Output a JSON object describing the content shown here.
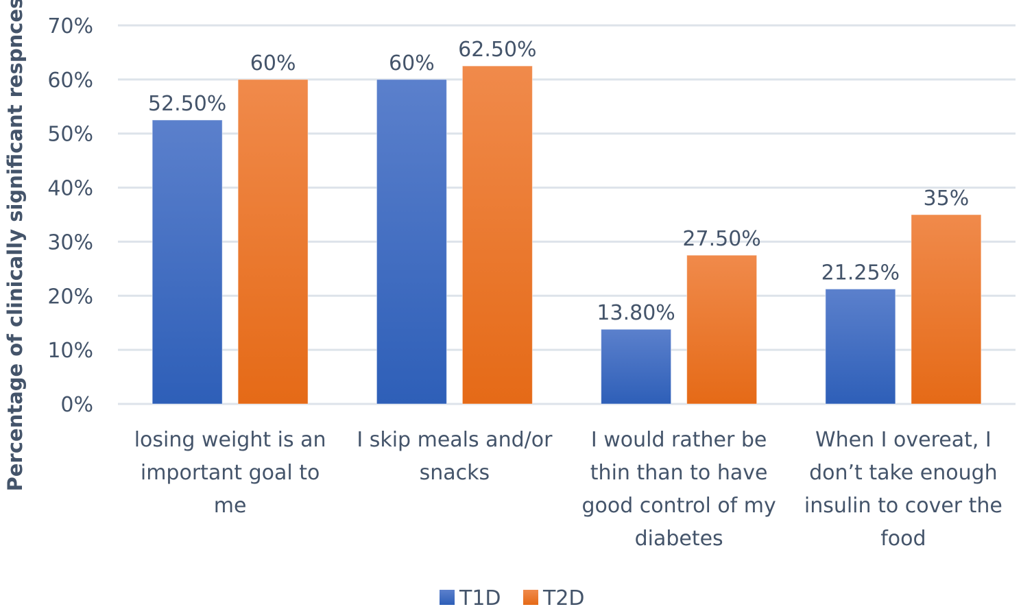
{
  "chart_data": {
    "type": "bar",
    "title": "",
    "xlabel": "",
    "ylabel": "Percentage of clinically significant respnces",
    "ylim": [
      0,
      70
    ],
    "yticks": [
      0,
      10,
      20,
      30,
      40,
      50,
      60,
      70
    ],
    "ytick_labels": [
      "0%",
      "10%",
      "20%",
      "30%",
      "40%",
      "50%",
      "60%",
      "70%"
    ],
    "grid": true,
    "legend_position": "bottom-center",
    "categories": [
      [
        "losing weight is an",
        "important goal to",
        "me"
      ],
      [
        "I skip meals and/or",
        "snacks"
      ],
      [
        "I would rather be",
        "thin than to have",
        "good control of my",
        "diabetes"
      ],
      [
        "When I overeat, I",
        "don’t take enough",
        "insulin to cover the",
        "food"
      ]
    ],
    "series": [
      {
        "name": "T1D",
        "color_top": "#5b80cc",
        "color_bottom": "#2e5fb8",
        "legend_color": "#4472c4",
        "values": [
          52.5,
          60,
          13.8,
          21.25
        ],
        "labels": [
          "52.50%",
          "60%",
          "13.80%",
          "21.25%"
        ]
      },
      {
        "name": "T2D",
        "color_top": "#f08a4b",
        "color_bottom": "#e56a17",
        "legend_color": "#ed7d31",
        "values": [
          60,
          62.5,
          27.5,
          35
        ],
        "labels": [
          "60%",
          "62.50%",
          "27.50%",
          "35%"
        ]
      }
    ]
  }
}
